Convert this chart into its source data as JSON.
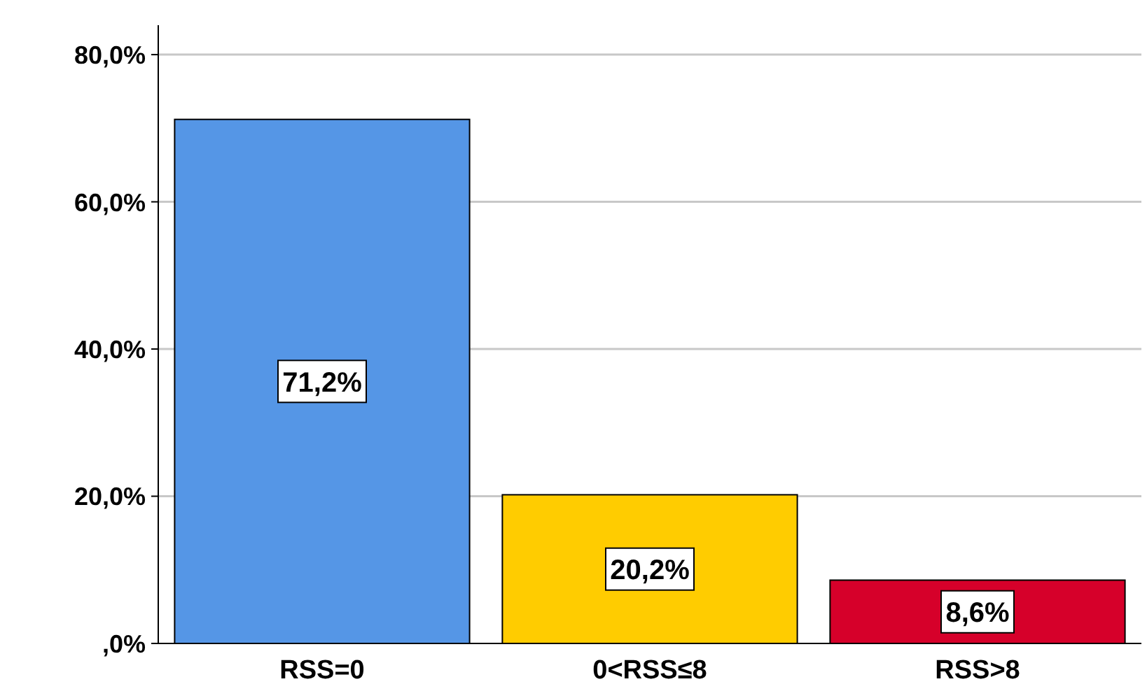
{
  "chart_data": {
    "type": "bar",
    "categories": [
      "RSS=0",
      "0<RSS≤8",
      "RSS>8"
    ],
    "values": [
      71.2,
      20.2,
      8.6
    ],
    "colors": [
      "#5596e6",
      "#ffcc00",
      "#d6002a"
    ],
    "value_labels": [
      "71,2%",
      "20,2%",
      "8,6%"
    ],
    "ylim": [
      0,
      84
    ],
    "yticks": [
      {
        "value": 0,
        "label": ",0%"
      },
      {
        "value": 20,
        "label": "20,0%"
      },
      {
        "value": 40,
        "label": "40,0%"
      },
      {
        "value": 60,
        "label": "60,0%"
      },
      {
        "value": 80,
        "label": "80,0%"
      }
    ],
    "grid": "y"
  }
}
